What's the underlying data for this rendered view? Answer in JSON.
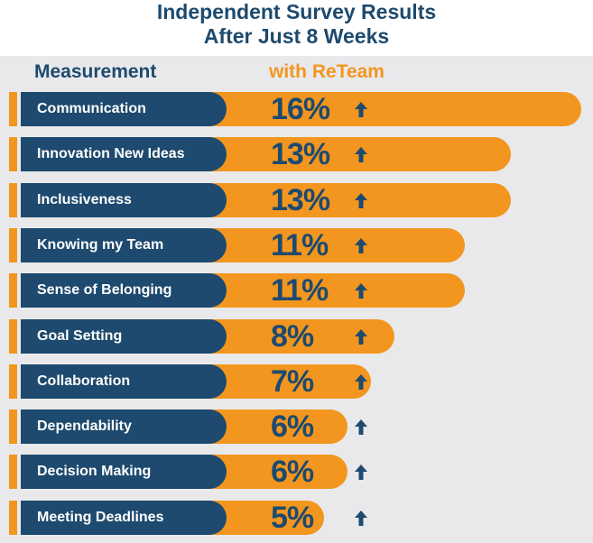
{
  "title_line1": "Independent Survey Results",
  "title_line2": "After Just 8 Weeks",
  "columns": {
    "measurement": "Measurement",
    "reteam": "with ReTeam"
  },
  "colors": {
    "navy": "#1d4a6e",
    "orange": "#f3961f",
    "panel": "#e9e9eb"
  },
  "icons": {
    "increase": "arrow-up-icon"
  },
  "chart_data": {
    "type": "bar",
    "orientation": "horizontal",
    "categories": [
      "Communication",
      "Innovation New Ideas",
      "Inclusiveness",
      "Knowing my Team",
      "Sense of Belonging",
      "Goal Setting",
      "Collaboration",
      "Dependability",
      "Decision Making",
      "Meeting Deadlines"
    ],
    "values": [
      16,
      13,
      13,
      11,
      11,
      8,
      7,
      6,
      6,
      5
    ],
    "value_labels": [
      "16%",
      "13%",
      "13%",
      "11%",
      "11%",
      "8%",
      "7%",
      "6%",
      "6%",
      "5%"
    ],
    "unit": "%",
    "title": "Independent Survey Results After Just 8 Weeks",
    "xlabel": "",
    "ylabel": ""
  }
}
